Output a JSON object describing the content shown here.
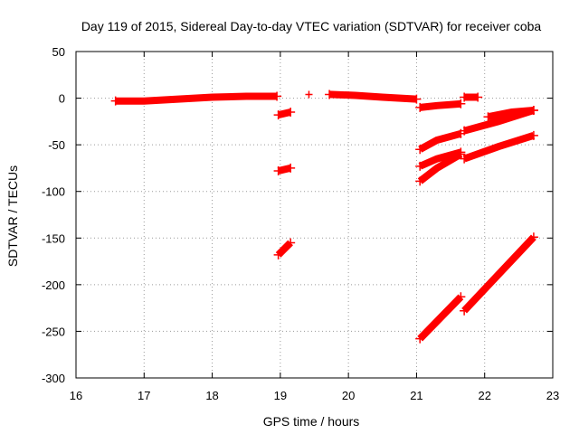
{
  "chart_data": {
    "type": "scatter",
    "title": "Day 119 of 2015, Sidereal Day-to-day VTEC variation (SDTVAR) for receiver coba",
    "xlabel": "GPS time / hours",
    "ylabel": "SDTVAR / TECUs",
    "xlim": [
      16,
      23
    ],
    "ylim": [
      -300,
      50
    ],
    "xticks": [
      "16",
      "17",
      "18",
      "19",
      "20",
      "21",
      "22",
      "23"
    ],
    "yticks": [
      "50",
      "0",
      "-50",
      "-100",
      "-150",
      "-200",
      "-250",
      "-300"
    ],
    "grid": true,
    "marker": "+",
    "color": "#ff0000",
    "segments": [
      {
        "x": [
          16.58,
          17.0,
          17.5,
          18.0,
          18.5,
          18.95
        ],
        "y": [
          -3,
          -3,
          -1,
          1,
          2,
          2
        ]
      },
      {
        "x": [
          18.97,
          19.15
        ],
        "y": [
          -18,
          -15
        ]
      },
      {
        "x": [
          18.97,
          19.15
        ],
        "y": [
          -78,
          -75
        ]
      },
      {
        "x": [
          18.97,
          19.15
        ],
        "y": [
          -168,
          -155
        ]
      },
      {
        "x": [
          19.72,
          20.1,
          20.5,
          21.0
        ],
        "y": [
          4,
          3,
          1,
          -1
        ]
      },
      {
        "x": [
          21.05,
          21.3,
          21.65
        ],
        "y": [
          -10,
          -8,
          -6
        ]
      },
      {
        "x": [
          21.05,
          21.3,
          21.65
        ],
        "y": [
          -55,
          -45,
          -38
        ]
      },
      {
        "x": [
          21.05,
          21.3,
          21.65
        ],
        "y": [
          -73,
          -65,
          -58
        ]
      },
      {
        "x": [
          21.05,
          21.3,
          21.65
        ],
        "y": [
          -89,
          -75,
          -60
        ]
      },
      {
        "x": [
          21.05,
          21.65
        ],
        "y": [
          -258,
          -213
        ]
      },
      {
        "x": [
          21.7,
          21.9
        ],
        "y": [
          1,
          1
        ]
      },
      {
        "x": [
          21.7,
          22.2,
          22.72
        ],
        "y": [
          -35,
          -25,
          -13
        ]
      },
      {
        "x": [
          21.7,
          22.2,
          22.72
        ],
        "y": [
          -65,
          -52,
          -40
        ]
      },
      {
        "x": [
          21.7,
          22.72
        ],
        "y": [
          -228,
          -149
        ]
      },
      {
        "x": [
          22.05,
          22.4,
          22.72
        ],
        "y": [
          -20,
          -15,
          -13
        ]
      }
    ],
    "points": [
      {
        "x": 19.42,
        "y": 4
      }
    ]
  }
}
